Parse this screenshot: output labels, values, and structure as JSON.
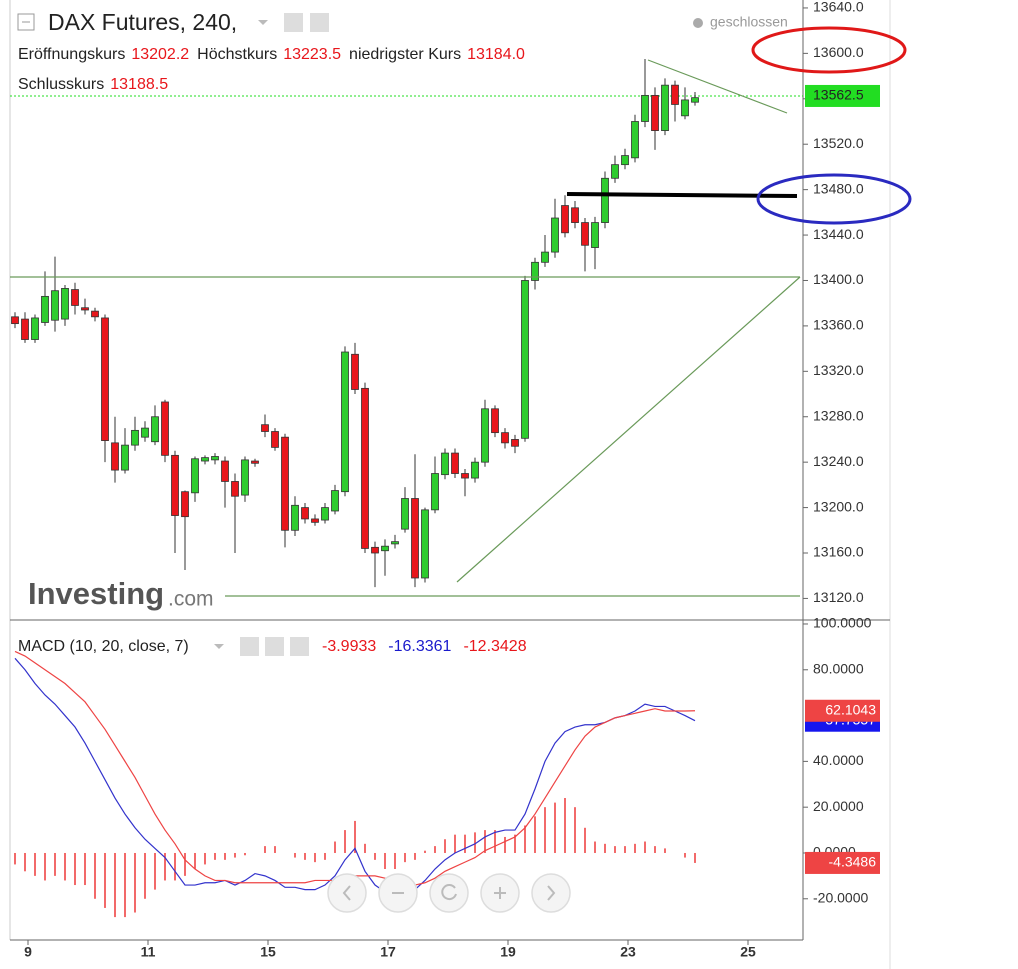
{
  "chart_data": [
    {
      "type": "candlestick",
      "title": "DAX Futures, 240,",
      "status": "geschlossen",
      "info": [
        {
          "label": "Eröffnungskurs",
          "value": "13202.2"
        },
        {
          "label": "Höchstkurs",
          "value": "13223.5"
        },
        {
          "label": "niedrigster Kurs",
          "value": "13184.0"
        },
        {
          "label": "Schlusskurs",
          "value": "13188.5"
        }
      ],
      "watermark": {
        "brand": "Investing",
        "suffix": ".com"
      },
      "up_color": "#2ecc2e",
      "down_color": "#e8161b",
      "x": [
        0,
        1,
        2,
        3,
        4,
        5,
        6,
        7,
        8,
        9,
        10,
        11,
        12,
        13,
        14,
        15,
        16,
        17,
        18,
        19,
        20,
        21,
        22,
        23,
        24,
        25,
        26,
        27,
        28,
        29,
        30,
        31,
        32,
        33,
        34,
        35,
        36,
        37,
        38,
        39,
        40,
        41,
        42,
        43,
        44,
        45,
        46,
        47,
        48,
        49,
        50,
        51,
        52,
        53,
        54,
        55,
        56,
        57,
        58,
        59,
        60,
        61,
        62,
        63,
        64,
        65,
        66,
        67,
        68
      ],
      "open": [
        13368,
        13366,
        13348,
        13363,
        13365,
        13366,
        13392,
        13376,
        13373,
        13367,
        13257,
        13233,
        13255,
        13262,
        13258,
        13293,
        13246,
        13214,
        13213,
        13241,
        13242,
        13241,
        13223,
        13211,
        13241,
        13273,
        13267,
        13262,
        13180,
        13200,
        13190,
        13189,
        13197,
        13214,
        13335,
        13305,
        13165,
        13162,
        13168,
        13181,
        13208,
        13138,
        13198,
        13229,
        13248,
        13230,
        13226,
        13240,
        13287,
        13266,
        13260,
        13261,
        13400,
        13416,
        13425,
        13466,
        13464,
        13451,
        13429,
        13451,
        13490,
        13502,
        13508,
        13540,
        13563,
        13532,
        13572,
        13545,
        13557
      ],
      "high": [
        13372,
        13372,
        13370,
        13408,
        13421,
        13396,
        13398,
        13384,
        13376,
        13370,
        13280,
        13270,
        13280,
        13276,
        13290,
        13295,
        13250,
        13215,
        13245,
        13246,
        13248,
        13245,
        13230,
        13245,
        13243,
        13282,
        13270,
        13265,
        13210,
        13204,
        13194,
        13204,
        13220,
        13342,
        13345,
        13310,
        13170,
        13172,
        13176,
        13218,
        13247,
        13200,
        13245,
        13252,
        13252,
        13234,
        13244,
        13295,
        13290,
        13270,
        13264,
        13404,
        13420,
        13440,
        13472,
        13475,
        13470,
        13455,
        13456,
        13496,
        13510,
        13516,
        13546,
        13595,
        13570,
        13578,
        13576,
        13570,
        13566
      ],
      "low": [
        13358,
        13345,
        13345,
        13360,
        13355,
        13360,
        13370,
        13370,
        13364,
        13240,
        13222,
        13230,
        13250,
        13258,
        13255,
        13240,
        13160,
        13145,
        13205,
        13238,
        13238,
        13200,
        13160,
        13205,
        13236,
        13262,
        13250,
        13165,
        13175,
        13186,
        13184,
        13186,
        13194,
        13210,
        13300,
        13160,
        13130,
        13140,
        13164,
        13178,
        13130,
        13134,
        13195,
        13225,
        13226,
        13210,
        13222,
        13236,
        13262,
        13252,
        13248,
        13258,
        13392,
        13412,
        13420,
        13438,
        13446,
        13408,
        13410,
        13446,
        13486,
        13498,
        13504,
        13535,
        13515,
        13528,
        13540,
        13542,
        13554
      ],
      "close": [
        13362,
        13348,
        13367,
        13386,
        13391,
        13393,
        13378,
        13374,
        13368,
        13259,
        13233,
        13255,
        13268,
        13270,
        13280,
        13246,
        13193,
        13192,
        13243,
        13244,
        13245,
        13223,
        13210,
        13242,
        13239,
        13267,
        13253,
        13180,
        13202,
        13190,
        13187,
        13200,
        13215,
        13337,
        13304,
        13164,
        13160,
        13166,
        13170,
        13208,
        13138,
        13198,
        13230,
        13248,
        13230,
        13226,
        13240,
        13287,
        13266,
        13257,
        13254,
        13400,
        13416,
        13425,
        13455,
        13442,
        13451,
        13431,
        13451,
        13490,
        13502,
        13510,
        13540,
        13563,
        13532,
        13572,
        13555,
        13559,
        13561
      ],
      "last_price": {
        "value": 13562.5,
        "label": "13562.5",
        "color": "#22dd22"
      },
      "xlim": [
        -0.5,
        78.8
      ],
      "xticks": [
        {
          "value": 1.3,
          "label": "9"
        },
        {
          "value": 13.3,
          "label": "11"
        },
        {
          "value": 25.3,
          "label": "15"
        },
        {
          "value": 37.3,
          "label": "17"
        },
        {
          "value": 49.3,
          "label": "19"
        },
        {
          "value": 61.3,
          "label": "23"
        },
        {
          "value": 73.3,
          "label": "25"
        }
      ],
      "ylim": [
        13101,
        13647
      ],
      "yticks": [
        {
          "value": 13120,
          "label": "13120.0"
        },
        {
          "value": 13160,
          "label": "13160.0"
        },
        {
          "value": 13200,
          "label": "13200.0"
        },
        {
          "value": 13240,
          "label": "13240.0"
        },
        {
          "value": 13280,
          "label": "13280.0"
        },
        {
          "value": 13320,
          "label": "13320.0"
        },
        {
          "value": 13360,
          "label": "13360.0"
        },
        {
          "value": 13400,
          "label": "13400.0"
        },
        {
          "value": 13440,
          "label": "13440.0"
        },
        {
          "value": 13480,
          "label": "13480.0"
        },
        {
          "value": 13520,
          "label": "13520.0"
        },
        {
          "value": 13560,
          "label": "13560.0"
        },
        {
          "value": 13600,
          "label": "13600.0"
        },
        {
          "value": 13640,
          "label": "13640.0"
        }
      ]
    },
    {
      "type": "macd",
      "title": "MACD (10, 20, close, 7)",
      "readout": [
        {
          "value": "-3.9933",
          "color": "#e8161b"
        },
        {
          "value": "-16.3361",
          "color": "#1a1acc"
        },
        {
          "value": "-12.3428",
          "color": "#e8161b"
        }
      ],
      "ylim": [
        -38,
        101.3
      ],
      "yticks": [
        {
          "value": -20,
          "label": "-20.0000"
        },
        {
          "value": 0,
          "label": "0.0000"
        },
        {
          "value": 20,
          "label": "20.0000"
        },
        {
          "value": 40,
          "label": "40.0000"
        },
        {
          "value": 80,
          "label": "80.0000"
        },
        {
          "value": 100,
          "label": "100.0000"
        }
      ],
      "series": [
        {
          "name": "histogram",
          "type": "bar",
          "color": "#ee4444",
          "values": [
            -5,
            -8,
            -10,
            -12,
            -10,
            -12,
            -14,
            -14,
            -20,
            -24,
            -28,
            -28,
            -26,
            -20,
            -16,
            -12,
            -12,
            -10,
            -7,
            -5,
            -3,
            -3,
            -2,
            -1,
            0,
            3,
            3,
            0,
            -2,
            -3,
            -4,
            -3,
            5,
            10,
            14,
            4,
            -3,
            -7,
            -7,
            -4,
            -3,
            1,
            3,
            6,
            8,
            8,
            9,
            10,
            10,
            7,
            8,
            12,
            16,
            20,
            22,
            24,
            20,
            11,
            5,
            4,
            3,
            3,
            4,
            5,
            3,
            2,
            0,
            -2,
            -4.3486
          ]
        },
        {
          "name": "macd",
          "type": "line",
          "color": "#3333cc",
          "values": [
            85,
            80,
            74,
            69,
            65,
            60,
            55,
            48,
            40,
            32,
            24,
            17,
            11,
            6,
            2,
            -2,
            -8,
            -14,
            -14,
            -13,
            -13,
            -12,
            -14,
            -12,
            -9,
            -10,
            -12,
            -15,
            -15,
            -16,
            -16,
            -14,
            -10,
            -3,
            2,
            -8,
            -14,
            -17,
            -16,
            -15,
            -16,
            -12,
            -7,
            -3,
            0,
            2,
            4,
            7,
            9,
            10,
            10,
            17,
            28,
            40,
            48,
            53,
            55,
            56,
            56,
            57,
            59,
            60,
            62,
            65,
            64,
            64,
            62,
            60,
            57.7557
          ]
        },
        {
          "name": "signal",
          "type": "line",
          "color": "#ee4444",
          "values": [
            88,
            86,
            83,
            80,
            77,
            74,
            70,
            66,
            60,
            54,
            47,
            40,
            33,
            25,
            17,
            10,
            4,
            -3,
            -7,
            -10,
            -12,
            -12,
            -13,
            -13,
            -13,
            -13,
            -13,
            -13,
            -13,
            -13,
            -12,
            -12,
            -12,
            -11,
            -10,
            -10,
            -10,
            -11,
            -12,
            -13,
            -14,
            -13,
            -11,
            -8,
            -6,
            -4,
            -2,
            1,
            3,
            5,
            7,
            11,
            17,
            24,
            31,
            38,
            45,
            51,
            55,
            57,
            59,
            60,
            61,
            62,
            63,
            62,
            62,
            62,
            62.1043
          ]
        }
      ]
    }
  ]
}
